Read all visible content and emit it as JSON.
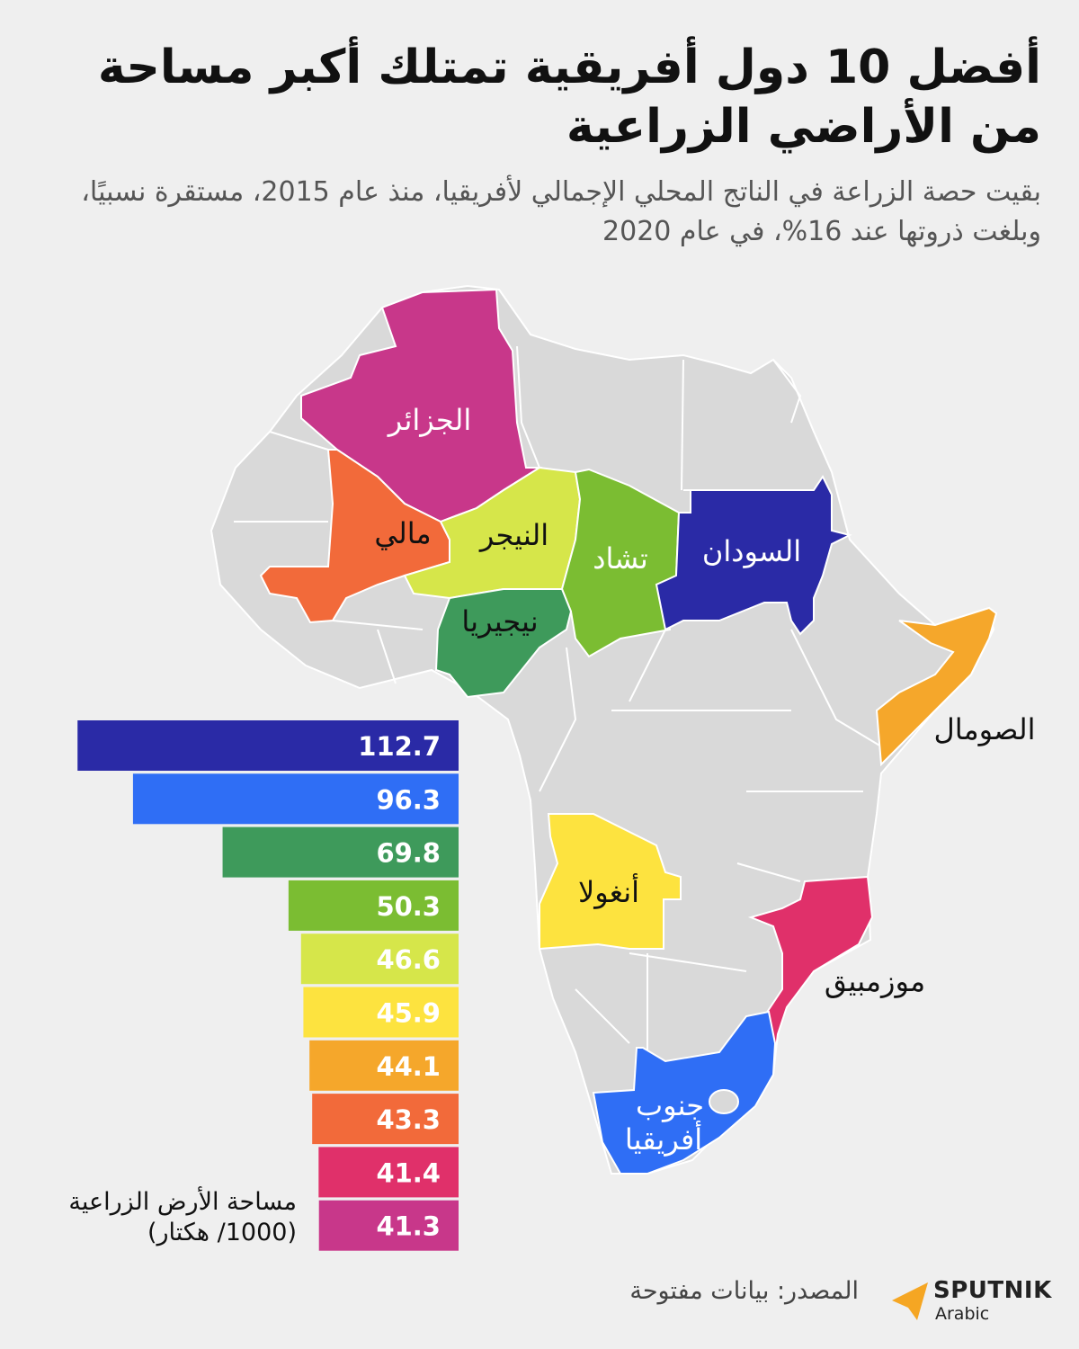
{
  "title": "أفضل 10 دول أفريقية تمتلك أكبر مساحة من الأراضي الزراعية",
  "subtitle": "بقيت حصة الزراعة في الناتج المحلي الإجمالي لأفريقيا، منذ عام 2015، مستقرة نسبيًا، وبلغت ذروتها عند 16%، في عام 2020",
  "legend_label_line1": "مساحة الأرض الزراعية",
  "legend_label_line2": "(1000/ هكتار)",
  "source": "المصدر: بيانات مفتوحة",
  "brand": {
    "name": "SPUTNIK",
    "sub": "Arabic",
    "color": "#f5a623"
  },
  "chart_data": {
    "type": "bar",
    "orientation": "horizontal",
    "categories": [
      "السودان",
      "جنوب أفريقيا",
      "نيجيريا",
      "تشاد",
      "النيجر",
      "أنغولا",
      "الصومال",
      "مالي",
      "موزمبيق",
      "الجزائر"
    ],
    "values": [
      112.7,
      96.3,
      69.8,
      50.3,
      46.6,
      45.9,
      44.1,
      43.3,
      41.4,
      41.3
    ],
    "value_labels": [
      "112.7",
      "96.3",
      "69.8",
      "50.3",
      "46.6",
      "45.9",
      "44.1",
      "43.3",
      "41.4",
      "41.3"
    ],
    "colors": [
      "#2a2aa6",
      "#2f6ef5",
      "#3e9a5b",
      "#7bbd32",
      "#d6e64a",
      "#fde33f",
      "#f5a72b",
      "#f26a3a",
      "#e0306a",
      "#c8378a"
    ]
  },
  "map_labels": {
    "algeria": "الجزائر",
    "mali": "مالي",
    "niger": "النيجر",
    "chad": "تشاد",
    "sudan": "السودان",
    "nigeria": "نيجيريا",
    "somalia": "الصومال",
    "angola": "أنغولا",
    "mozambique": "موزمبيق",
    "south_africa_1": "جنوب",
    "south_africa_2": "أفريقيا"
  }
}
